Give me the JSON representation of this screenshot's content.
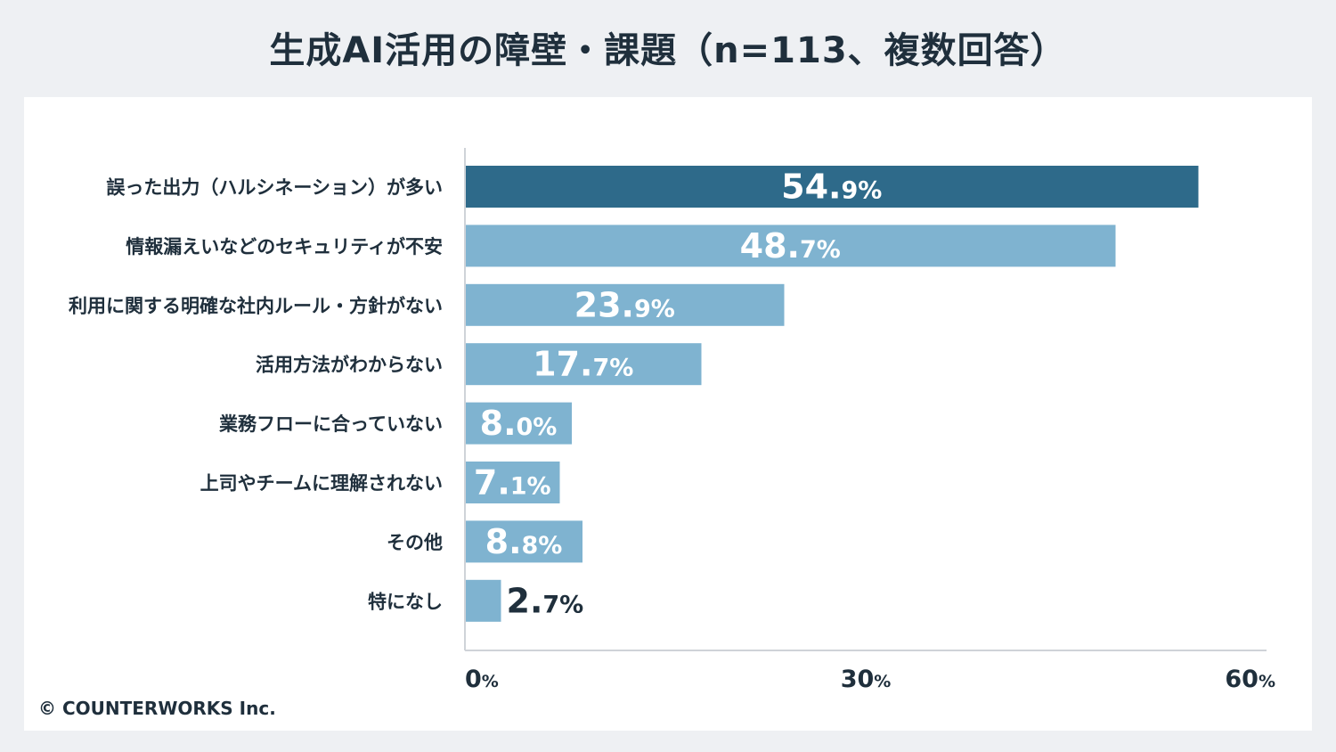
{
  "page": {
    "title": "生成AI活用の障壁・課題（n=113、複数回答）",
    "copyright": "© COUNTERWORKS Inc."
  },
  "colors": {
    "background": "#eef0f3",
    "panel": "#ffffff",
    "bar_highlight": "#2e6a8a",
    "bar_default": "#7fb3d0",
    "text": "#1f2f3c",
    "axis": "#cfd3d8"
  },
  "chart_data": {
    "type": "bar",
    "orientation": "horizontal",
    "title": "生成AI活用の障壁・課題（n=113、複数回答）",
    "unit": "%",
    "categories": [
      "誤った出力（ハルシネーション）が多い",
      "情報漏えいなどのセキュリティが不安",
      "利用に関する明確な社内ルール・方針がない",
      "活用方法がわからない",
      "業務フローに合っていない",
      "上司やチームに理解されない",
      "その他",
      "特になし"
    ],
    "values": [
      54.9,
      48.7,
      23.9,
      17.7,
      8.0,
      7.1,
      8.8,
      2.7
    ],
    "highlight_index": 0,
    "xlim": [
      0,
      60
    ],
    "xticks": [
      0,
      30,
      60
    ],
    "xtick_labels": [
      "0",
      "30",
      "60"
    ],
    "xtick_suffix": "%",
    "grid": false
  }
}
